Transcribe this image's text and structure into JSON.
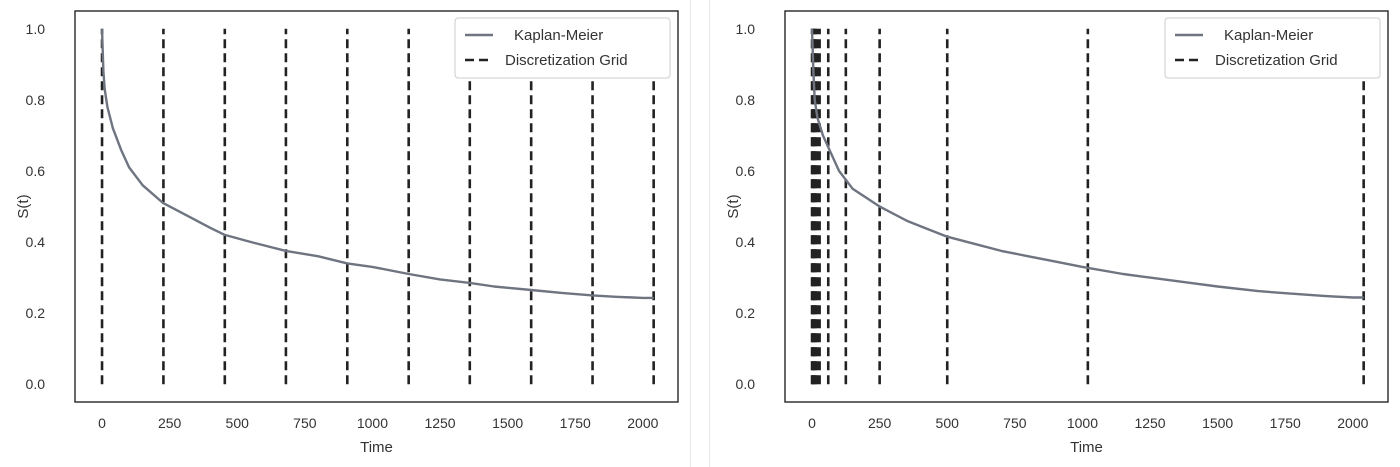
{
  "colors": {
    "km_line": "#6e7480",
    "grid_line": "#222222",
    "frame": "#262626",
    "legend_border": "#cccccc"
  },
  "chart_data": [
    {
      "type": "line",
      "xlabel": "Time",
      "ylabel": "S(t)",
      "xlim": [
        -100,
        2130
      ],
      "ylim": [
        -0.05,
        1.05
      ],
      "xticks": [
        0,
        250,
        500,
        750,
        1000,
        1250,
        1500,
        1750,
        2000
      ],
      "xtick_labels": [
        "0",
        "250",
        "500",
        "750",
        "1000",
        "1250",
        "1500",
        "1750",
        "2000"
      ],
      "yticks": [
        0.0,
        0.2,
        0.4,
        0.6,
        0.8,
        1.0
      ],
      "ytick_labels": [
        "0.0",
        "0.2",
        "0.4",
        "0.6",
        "0.8",
        "1.0"
      ],
      "grid": false,
      "legend": {
        "position": "top-right",
        "entries": [
          "Kaplan-Meier",
          "Discretization Grid"
        ]
      },
      "series": [
        {
          "name": "Kaplan-Meier",
          "style": "solid",
          "x": [
            0,
            5,
            10,
            20,
            40,
            70,
            100,
            150,
            225,
            300,
            400,
            454,
            550,
            680,
            800,
            907,
            1000,
            1134,
            1250,
            1360,
            1450,
            1587,
            1700,
            1814,
            1900,
            2000,
            2040
          ],
          "y": [
            1.0,
            0.88,
            0.83,
            0.78,
            0.72,
            0.66,
            0.61,
            0.56,
            0.51,
            0.48,
            0.44,
            0.42,
            0.4,
            0.375,
            0.36,
            0.34,
            0.33,
            0.31,
            0.295,
            0.285,
            0.275,
            0.265,
            0.257,
            0.25,
            0.246,
            0.243,
            0.243
          ]
        },
        {
          "name": "Discretization Grid",
          "style": "dashed",
          "x_positions": [
            0,
            227,
            454,
            680,
            907,
            1134,
            1360,
            1587,
            1814,
            2040
          ],
          "y_range": [
            0,
            1
          ]
        }
      ]
    },
    {
      "type": "line",
      "xlabel": "Time",
      "ylabel": "S(t)",
      "xlim": [
        -100,
        2130
      ],
      "ylim": [
        -0.05,
        1.05
      ],
      "xticks": [
        0,
        250,
        500,
        750,
        1000,
        1250,
        1500,
        1750,
        2000
      ],
      "xtick_labels": [
        "0",
        "250",
        "500",
        "750",
        "1000",
        "1250",
        "1500",
        "1750",
        "2000"
      ],
      "yticks": [
        0.0,
        0.2,
        0.4,
        0.6,
        0.8,
        1.0
      ],
      "ytick_labels": [
        "0.0",
        "0.2",
        "0.4",
        "0.6",
        "0.8",
        "1.0"
      ],
      "grid": false,
      "legend": {
        "position": "top-right",
        "entries": [
          "Kaplan-Meier",
          "Discretization Grid"
        ]
      },
      "series": [
        {
          "name": "Kaplan-Meier",
          "style": "solid",
          "x": [
            0,
            5,
            10,
            20,
            40,
            70,
            100,
            150,
            250,
            350,
            400,
            500,
            600,
            700,
            800,
            900,
            1000,
            1150,
            1250,
            1400,
            1500,
            1650,
            1750,
            1900,
            2000,
            2040
          ],
          "y": [
            1.0,
            0.88,
            0.8,
            0.75,
            0.7,
            0.65,
            0.6,
            0.55,
            0.5,
            0.46,
            0.445,
            0.415,
            0.395,
            0.375,
            0.36,
            0.345,
            0.33,
            0.31,
            0.3,
            0.285,
            0.275,
            0.262,
            0.256,
            0.248,
            0.244,
            0.244
          ]
        },
        {
          "name": "Discretization Grid",
          "style": "dashed",
          "x_positions": [
            0,
            2,
            4,
            7,
            10,
            14,
            20,
            28,
            60,
            125,
            250,
            500,
            1020,
            2040
          ],
          "y_range": [
            0,
            1
          ]
        }
      ]
    }
  ]
}
